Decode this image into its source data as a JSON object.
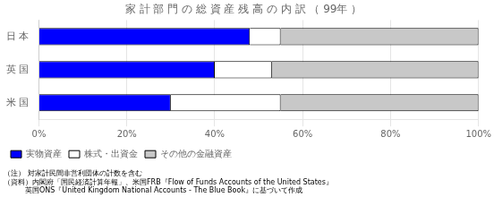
{
  "chart_data": {
    "type": "bar",
    "title": "家 計 部 門 の 総 資 産 残 高 の 内 訳 （ 99年 ）",
    "orientation": "horizontal",
    "stacked": true,
    "categories": [
      "米 国",
      "英 国",
      "日 本"
    ],
    "series": [
      {
        "name": "実物資産",
        "color": "#0000FF",
        "values": [
          30,
          40,
          48
        ]
      },
      {
        "name": "株式・出資金",
        "color": "#FFFFFF",
        "values": [
          25,
          13,
          7
        ]
      },
      {
        "name": "その他の金融資産",
        "color": "#C8C8C8",
        "values": [
          45,
          47,
          45
        ]
      }
    ],
    "xlim": [
      0,
      100
    ],
    "xticks": [
      {
        "value": 0,
        "label": "0%"
      },
      {
        "value": 20,
        "label": "20%"
      },
      {
        "value": 40,
        "label": "40%"
      },
      {
        "value": 60,
        "label": "60%"
      },
      {
        "value": 80,
        "label": "80%"
      },
      {
        "value": 100,
        "label": "100%"
      }
    ],
    "grid": true,
    "legend": "bottom",
    "annotations": [
      "（注） 対家計民間非営利団体の計数を含む",
      "（資料）内閣府「国民経済計算年報」、米国FRB『Flow of Funds Accounts of the United States』",
      "　　　英国ONS『United Kingdom National Accounts - The Blue Book』に基づいて作成"
    ]
  }
}
